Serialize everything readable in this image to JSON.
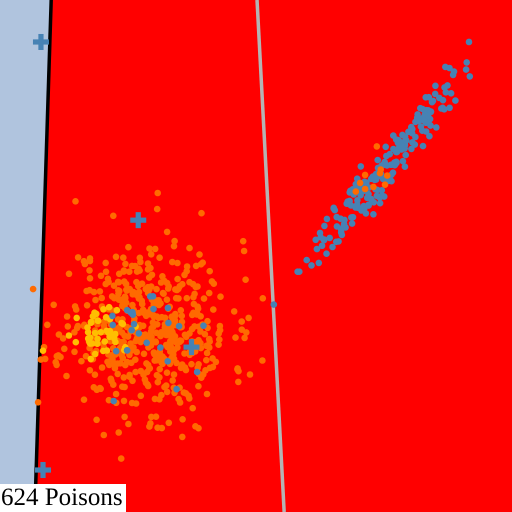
{
  "chart_data": {
    "type": "scatter",
    "title": "",
    "xlabel": "",
    "ylabel": "",
    "grid": false,
    "legend": "none",
    "xlim": [
      0,
      100
    ],
    "ylim": [
      0,
      100
    ],
    "regions": [
      {
        "name": "class-a-region",
        "color": "#b0c4de"
      },
      {
        "name": "class-b-region",
        "color": "#ff0000"
      }
    ],
    "boundaries": [
      {
        "name": "black-boundary",
        "color": "#000000",
        "points": [
          [
            10.0,
            100.0
          ],
          [
            6.8,
            0.0
          ]
        ]
      },
      {
        "name": "gray-boundary",
        "color": "#b4b4b4",
        "points": [
          [
            50.2,
            100.0
          ],
          [
            55.5,
            0.0
          ]
        ]
      }
    ],
    "clusters": [
      {
        "name": "orange-cluster",
        "color": "#ff6a00",
        "count": 520,
        "center": [
          29.0,
          36.0
        ],
        "spread": [
          8.0,
          8.5
        ],
        "seed": 11
      },
      {
        "name": "gold-cluster",
        "color": "#ffbf00",
        "count": 45,
        "center": [
          20.5,
          35.0
        ],
        "spread": [
          2.6,
          2.0
        ],
        "seed": 23
      },
      {
        "name": "blue-cluster",
        "color": "#4682b4",
        "count": 200,
        "center": [
          75.0,
          67.0
        ],
        "spread": [
          11.0,
          1.6
        ],
        "angle": 52,
        "seed": 37
      },
      {
        "name": "blue-among-orange",
        "color": "#4682b4",
        "count": 25,
        "center": [
          30.0,
          36.0
        ],
        "spread": [
          6.0,
          6.0
        ],
        "seed": 53
      },
      {
        "name": "orange-among-blue",
        "color": "#ff6a00",
        "count": 10,
        "center": [
          75.0,
          68.0
        ],
        "spread": [
          6.0,
          1.4
        ],
        "angle": 52,
        "seed": 71
      }
    ],
    "crosses": [
      {
        "name": "poison-cross",
        "color": "#4682b4",
        "x": 8.0,
        "y": 91.8
      },
      {
        "name": "poison-cross",
        "color": "#4682b4",
        "x": 8.4,
        "y": 8.2
      },
      {
        "name": "poison-cross",
        "color": "#4682b4",
        "x": 27.0,
        "y": 57.0
      },
      {
        "name": "poison-cross",
        "color": "#4682b4",
        "x": 37.4,
        "y": 32.2
      }
    ],
    "outliers": [
      {
        "color": "#4682b4",
        "x": 91.6,
        "y": 91.8
      },
      {
        "color": "#4682b4",
        "x": 62.9,
        "y": 52.0
      },
      {
        "color": "#4682b4",
        "x": 62.5,
        "y": 54.5
      },
      {
        "color": "#ff6a00",
        "x": 8.6,
        "y": 32.2
      },
      {
        "color": "#ffbf00",
        "x": 8.4,
        "y": 31.5
      }
    ],
    "annotation": "624 Poisons"
  }
}
